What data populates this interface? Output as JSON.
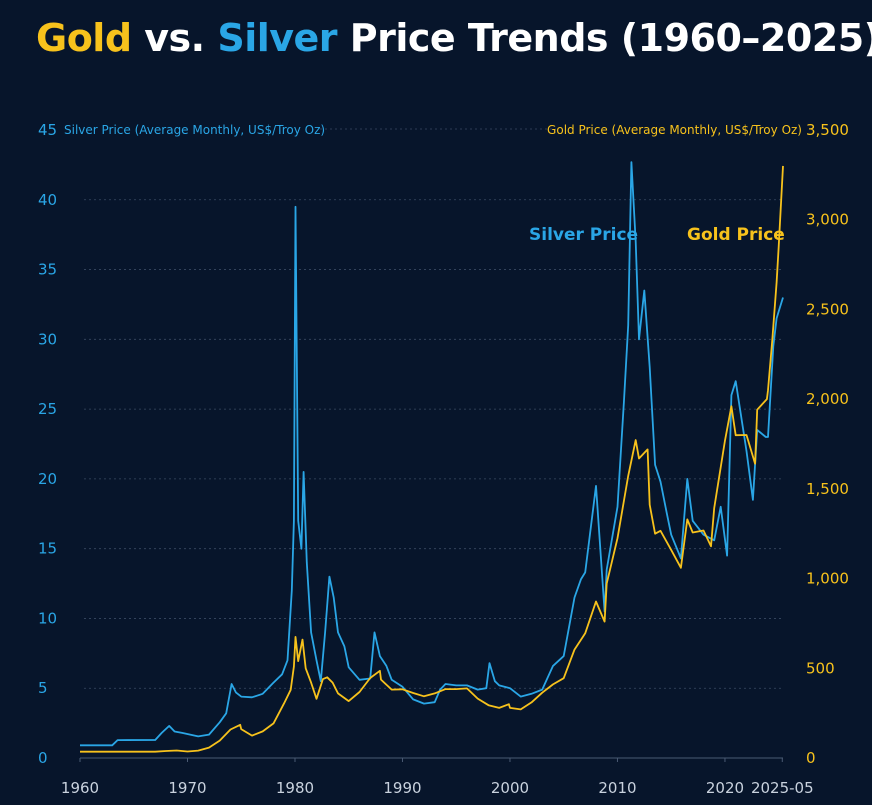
{
  "title": {
    "part_gold": "Gold",
    "part_vs": " vs. ",
    "part_silver": "Silver",
    "part_rest": " Price Trends (1960–2025)"
  },
  "colors": {
    "gold": "#f7c21c",
    "silver": "#2aa6e6",
    "background": "#07152b",
    "grid": "#3a4a63"
  },
  "chart_data": {
    "type": "line",
    "x_ticks": [
      "1960",
      "1970",
      "1980",
      "1990",
      "2000",
      "2010",
      "2020",
      "2025-05"
    ],
    "x_range": [
      1960,
      2025.4
    ],
    "y_left": {
      "label": "Silver Price (Average Monthly, US$/Troy Oz)",
      "ticks": [
        "0",
        "5",
        "10",
        "15",
        "20",
        "25",
        "30",
        "35",
        "40",
        "45"
      ],
      "range": [
        0,
        45
      ]
    },
    "y_right": {
      "label": "Gold Price (Average Monthly, US$/Troy Oz)",
      "ticks": [
        "0",
        "500",
        "1,000",
        "1,500",
        "2,000",
        "2,500",
        "3,000",
        "3,500"
      ],
      "range": [
        0,
        3500
      ]
    },
    "grid": "horizontal dashed",
    "series": [
      {
        "name": "Silver Price",
        "axis": "left",
        "points": [
          [
            1960,
            0.91
          ],
          [
            1963,
            0.91
          ],
          [
            1963.5,
            1.28
          ],
          [
            1967,
            1.29
          ],
          [
            1967.6,
            1.8
          ],
          [
            1968.3,
            2.3
          ],
          [
            1968.8,
            1.9
          ],
          [
            1969.5,
            1.8
          ],
          [
            1971,
            1.55
          ],
          [
            1972,
            1.68
          ],
          [
            1973,
            2.56
          ],
          [
            1973.6,
            3.2
          ],
          [
            1974.1,
            5.3
          ],
          [
            1974.5,
            4.7
          ],
          [
            1975,
            4.4
          ],
          [
            1976,
            4.35
          ],
          [
            1977,
            4.6
          ],
          [
            1978,
            5.4
          ],
          [
            1978.8,
            6.0
          ],
          [
            1979.3,
            7.0
          ],
          [
            1979.7,
            12.0
          ],
          [
            1979.9,
            17.0
          ],
          [
            1980.05,
            39.5
          ],
          [
            1980.3,
            17.0
          ],
          [
            1980.6,
            15.0
          ],
          [
            1980.8,
            20.5
          ],
          [
            1981.1,
            14.0
          ],
          [
            1981.5,
            9.0
          ],
          [
            1982,
            7.0
          ],
          [
            1982.4,
            5.5
          ],
          [
            1982.8,
            9.0
          ],
          [
            1983.2,
            13.0
          ],
          [
            1983.6,
            11.5
          ],
          [
            1984,
            9.0
          ],
          [
            1984.6,
            8.0
          ],
          [
            1985,
            6.5
          ],
          [
            1986,
            5.6
          ],
          [
            1987,
            5.7
          ],
          [
            1987.4,
            9.0
          ],
          [
            1987.9,
            7.3
          ],
          [
            1988.5,
            6.6
          ],
          [
            1989,
            5.6
          ],
          [
            1990,
            5.1
          ],
          [
            1991,
            4.2
          ],
          [
            1992,
            3.9
          ],
          [
            1993,
            4.0
          ],
          [
            1993.5,
            4.9
          ],
          [
            1994,
            5.3
          ],
          [
            1995,
            5.2
          ],
          [
            1996,
            5.2
          ],
          [
            1997,
            4.9
          ],
          [
            1997.8,
            5.0
          ],
          [
            1998.1,
            6.8
          ],
          [
            1998.6,
            5.5
          ],
          [
            1999,
            5.2
          ],
          [
            2000,
            5.0
          ],
          [
            2001,
            4.4
          ],
          [
            2002,
            4.6
          ],
          [
            2003,
            4.9
          ],
          [
            2004,
            6.6
          ],
          [
            2005,
            7.3
          ],
          [
            2006,
            11.5
          ],
          [
            2006.6,
            12.8
          ],
          [
            2007,
            13.3
          ],
          [
            2008,
            19.5
          ],
          [
            2008.8,
            10.5
          ],
          [
            2009,
            13.5
          ],
          [
            2010,
            18.0
          ],
          [
            2010.6,
            25.5
          ],
          [
            2011,
            31.0
          ],
          [
            2011.3,
            42.7
          ],
          [
            2011.7,
            37.0
          ],
          [
            2012,
            30.0
          ],
          [
            2012.5,
            33.5
          ],
          [
            2013,
            28.0
          ],
          [
            2013.5,
            21.0
          ],
          [
            2014,
            19.8
          ],
          [
            2014.6,
            17.5
          ],
          [
            2015,
            16.0
          ],
          [
            2015.9,
            14.3
          ],
          [
            2016.5,
            20.0
          ],
          [
            2017,
            17.0
          ],
          [
            2018,
            16.0
          ],
          [
            2019,
            15.6
          ],
          [
            2019.6,
            18.0
          ],
          [
            2020.2,
            14.5
          ],
          [
            2020.6,
            26.0
          ],
          [
            2021,
            27.0
          ],
          [
            2022,
            22.0
          ],
          [
            2022.6,
            18.5
          ],
          [
            2023,
            23.5
          ],
          [
            2023.8,
            23.0
          ],
          [
            2024,
            23.0
          ],
          [
            2024.5,
            29.5
          ],
          [
            2024.8,
            31.5
          ],
          [
            2025,
            32.0
          ],
          [
            2025.4,
            33.0
          ]
        ]
      },
      {
        "name": "Gold Price",
        "axis": "right",
        "points": [
          [
            1960,
            35
          ],
          [
            1967,
            35
          ],
          [
            1968,
            39
          ],
          [
            1969,
            42
          ],
          [
            1970,
            36
          ],
          [
            1971,
            41
          ],
          [
            1972,
            58
          ],
          [
            1973,
            97
          ],
          [
            1974,
            159
          ],
          [
            1974.9,
            185
          ],
          [
            1975,
            161
          ],
          [
            1976,
            125
          ],
          [
            1977,
            148
          ],
          [
            1978,
            193
          ],
          [
            1979,
            306
          ],
          [
            1979.6,
            380
          ],
          [
            1979.9,
            510
          ],
          [
            1980.05,
            675
          ],
          [
            1980.3,
            540
          ],
          [
            1980.7,
            660
          ],
          [
            1981,
            500
          ],
          [
            1981.5,
            420
          ],
          [
            1982,
            330
          ],
          [
            1982.6,
            440
          ],
          [
            1983,
            450
          ],
          [
            1983.5,
            420
          ],
          [
            1984,
            360
          ],
          [
            1985,
            317
          ],
          [
            1986,
            368
          ],
          [
            1987,
            446
          ],
          [
            1987.9,
            486
          ],
          [
            1988,
            437
          ],
          [
            1989,
            381
          ],
          [
            1990,
            383
          ],
          [
            1991,
            362
          ],
          [
            1992,
            344
          ],
          [
            1993,
            360
          ],
          [
            1994,
            384
          ],
          [
            1995,
            384
          ],
          [
            1996,
            388
          ],
          [
            1997,
            331
          ],
          [
            1998,
            294
          ],
          [
            1999,
            279
          ],
          [
            1999.9,
            300
          ],
          [
            2000,
            279
          ],
          [
            2001,
            271
          ],
          [
            2002,
            310
          ],
          [
            2003,
            364
          ],
          [
            2004,
            410
          ],
          [
            2005,
            445
          ],
          [
            2006,
            604
          ],
          [
            2007,
            695
          ],
          [
            2008,
            872
          ],
          [
            2008.8,
            760
          ],
          [
            2009,
            972
          ],
          [
            2010,
            1225
          ],
          [
            2011,
            1572
          ],
          [
            2011.7,
            1772
          ],
          [
            2012,
            1669
          ],
          [
            2012.8,
            1720
          ],
          [
            2013,
            1411
          ],
          [
            2013.5,
            1250
          ],
          [
            2014,
            1266
          ],
          [
            2015,
            1160
          ],
          [
            2015.9,
            1060
          ],
          [
            2016.5,
            1330
          ],
          [
            2017,
            1257
          ],
          [
            2018,
            1268
          ],
          [
            2018.7,
            1180
          ],
          [
            2019,
            1393
          ],
          [
            2020,
            1770
          ],
          [
            2020.6,
            1960
          ],
          [
            2021,
            1799
          ],
          [
            2022,
            1800
          ],
          [
            2022.8,
            1640
          ],
          [
            2023,
            1941
          ],
          [
            2023.9,
            2000
          ],
          [
            2024,
            2050
          ],
          [
            2024.4,
            2330
          ],
          [
            2024.8,
            2650
          ],
          [
            2025,
            2850
          ],
          [
            2025.4,
            3300
          ]
        ]
      }
    ]
  }
}
